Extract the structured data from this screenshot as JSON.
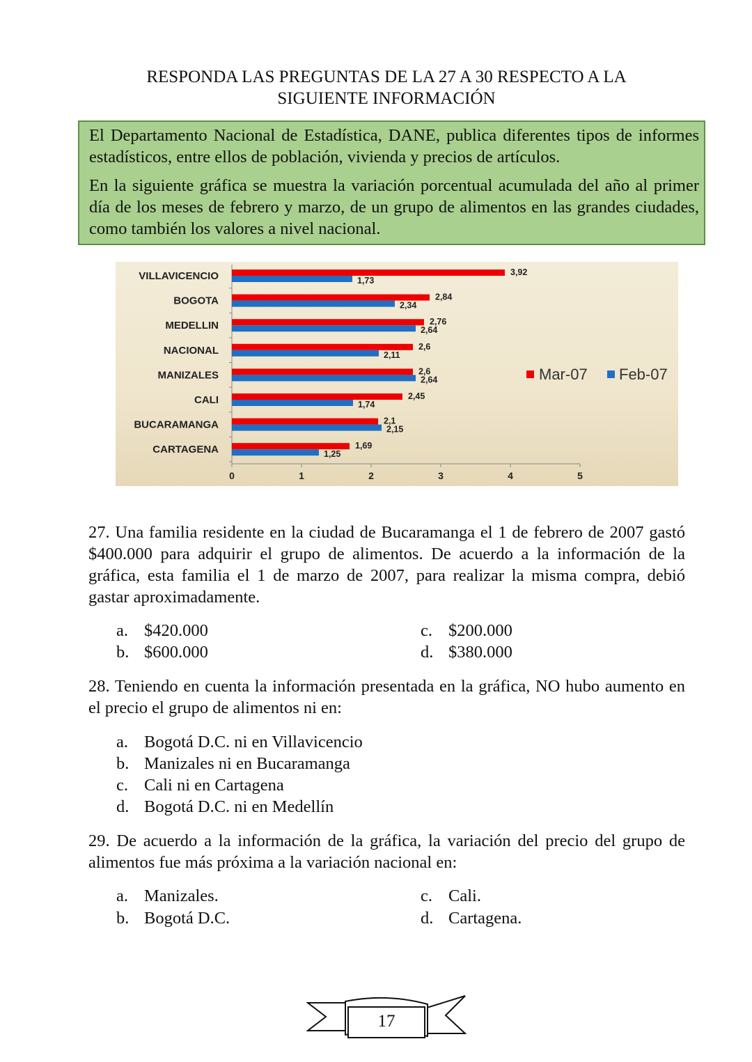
{
  "title": [
    "RESPONDA LAS PREGUNTAS DE LA 27 A 30 RESPECTO A LA",
    "SIGUIENTE INFORMACIÓN"
  ],
  "intro": [
    "El Departamento Nacional de Estadística, DANE, publica diferentes tipos de informes estadísticos, entre ellos de población, vivienda y precios de artículos.",
    "En la siguiente gráfica se muestra la variación porcentual acumulada del año al primer día de los meses de febrero y marzo, de un grupo de alimentos en las grandes ciudades, como también los valores a nivel nacional."
  ],
  "chart_data": {
    "type": "bar",
    "orientation": "horizontal",
    "categories": [
      "VILLAVICENCIO",
      "BOGOTA",
      "MEDELLIN",
      "NACIONAL",
      "MANIZALES",
      "CALI",
      "BUCARAMANGA",
      "CARTAGENA"
    ],
    "series": [
      {
        "name": "Mar-07",
        "color": "#ee0000",
        "values": [
          3.92,
          2.84,
          2.76,
          2.6,
          2.6,
          2.45,
          2.1,
          1.69
        ],
        "labels": [
          "3,92",
          "2,84",
          "2,76",
          "2,6",
          "2,6",
          "2,45",
          "2,1",
          "1,69"
        ]
      },
      {
        "name": "Feb-07",
        "color": "#1f6fc4",
        "values": [
          1.73,
          2.34,
          2.64,
          2.11,
          2.64,
          1.74,
          2.15,
          1.25
        ],
        "labels": [
          "1,73",
          "2,34",
          "2,64",
          "2,11",
          "2,64",
          "1,74",
          "2,15",
          "1,25"
        ]
      }
    ],
    "xlim": [
      0,
      5
    ],
    "xticks": [
      "0",
      "1",
      "2",
      "3",
      "4",
      "5"
    ],
    "legend": "right",
    "grid": false
  },
  "questions": [
    {
      "text": "27. Una familia residente en la ciudad de Bucaramanga el 1 de febrero de 2007 gastó $400.000 para adquirir el grupo de alimentos. De acuerdo a la información de la gráfica, esta familia el 1 de marzo de 2007, para realizar la misma compra, debió gastar aproximadamente.",
      "options": [
        {
          "l": "a.",
          "t": "$420.000"
        },
        {
          "l": "b.",
          "t": "$600.000"
        },
        {
          "l": "c.",
          "t": "$200.000"
        },
        {
          "l": "d.",
          "t": "$380.000"
        }
      ]
    },
    {
      "text": "28. Teniendo en cuenta la información presentada en la gráfica, NO hubo aumento en el precio el grupo de alimentos ni en:",
      "options": [
        {
          "l": "a.",
          "t": "Bogotá D.C. ni en Villavicencio"
        },
        {
          "l": "b.",
          "t": "Manizales ni en Bucaramanga"
        },
        {
          "l": "c.",
          "t": "Cali ni en Cartagena"
        },
        {
          "l": "d.",
          "t": "Bogotá D.C. ni en Medellín"
        }
      ]
    },
    {
      "text": "29. De acuerdo a la información de la gráfica, la variación del precio del grupo de alimentos fue más próxima a la variación nacional en:",
      "options": [
        {
          "l": "a.",
          "t": "Manizales."
        },
        {
          "l": "b.",
          "t": "Bogotá D.C."
        },
        {
          "l": "c.",
          "t": "Cali."
        },
        {
          "l": "d.",
          "t": "Cartagena."
        }
      ]
    }
  ],
  "page_number": "17"
}
